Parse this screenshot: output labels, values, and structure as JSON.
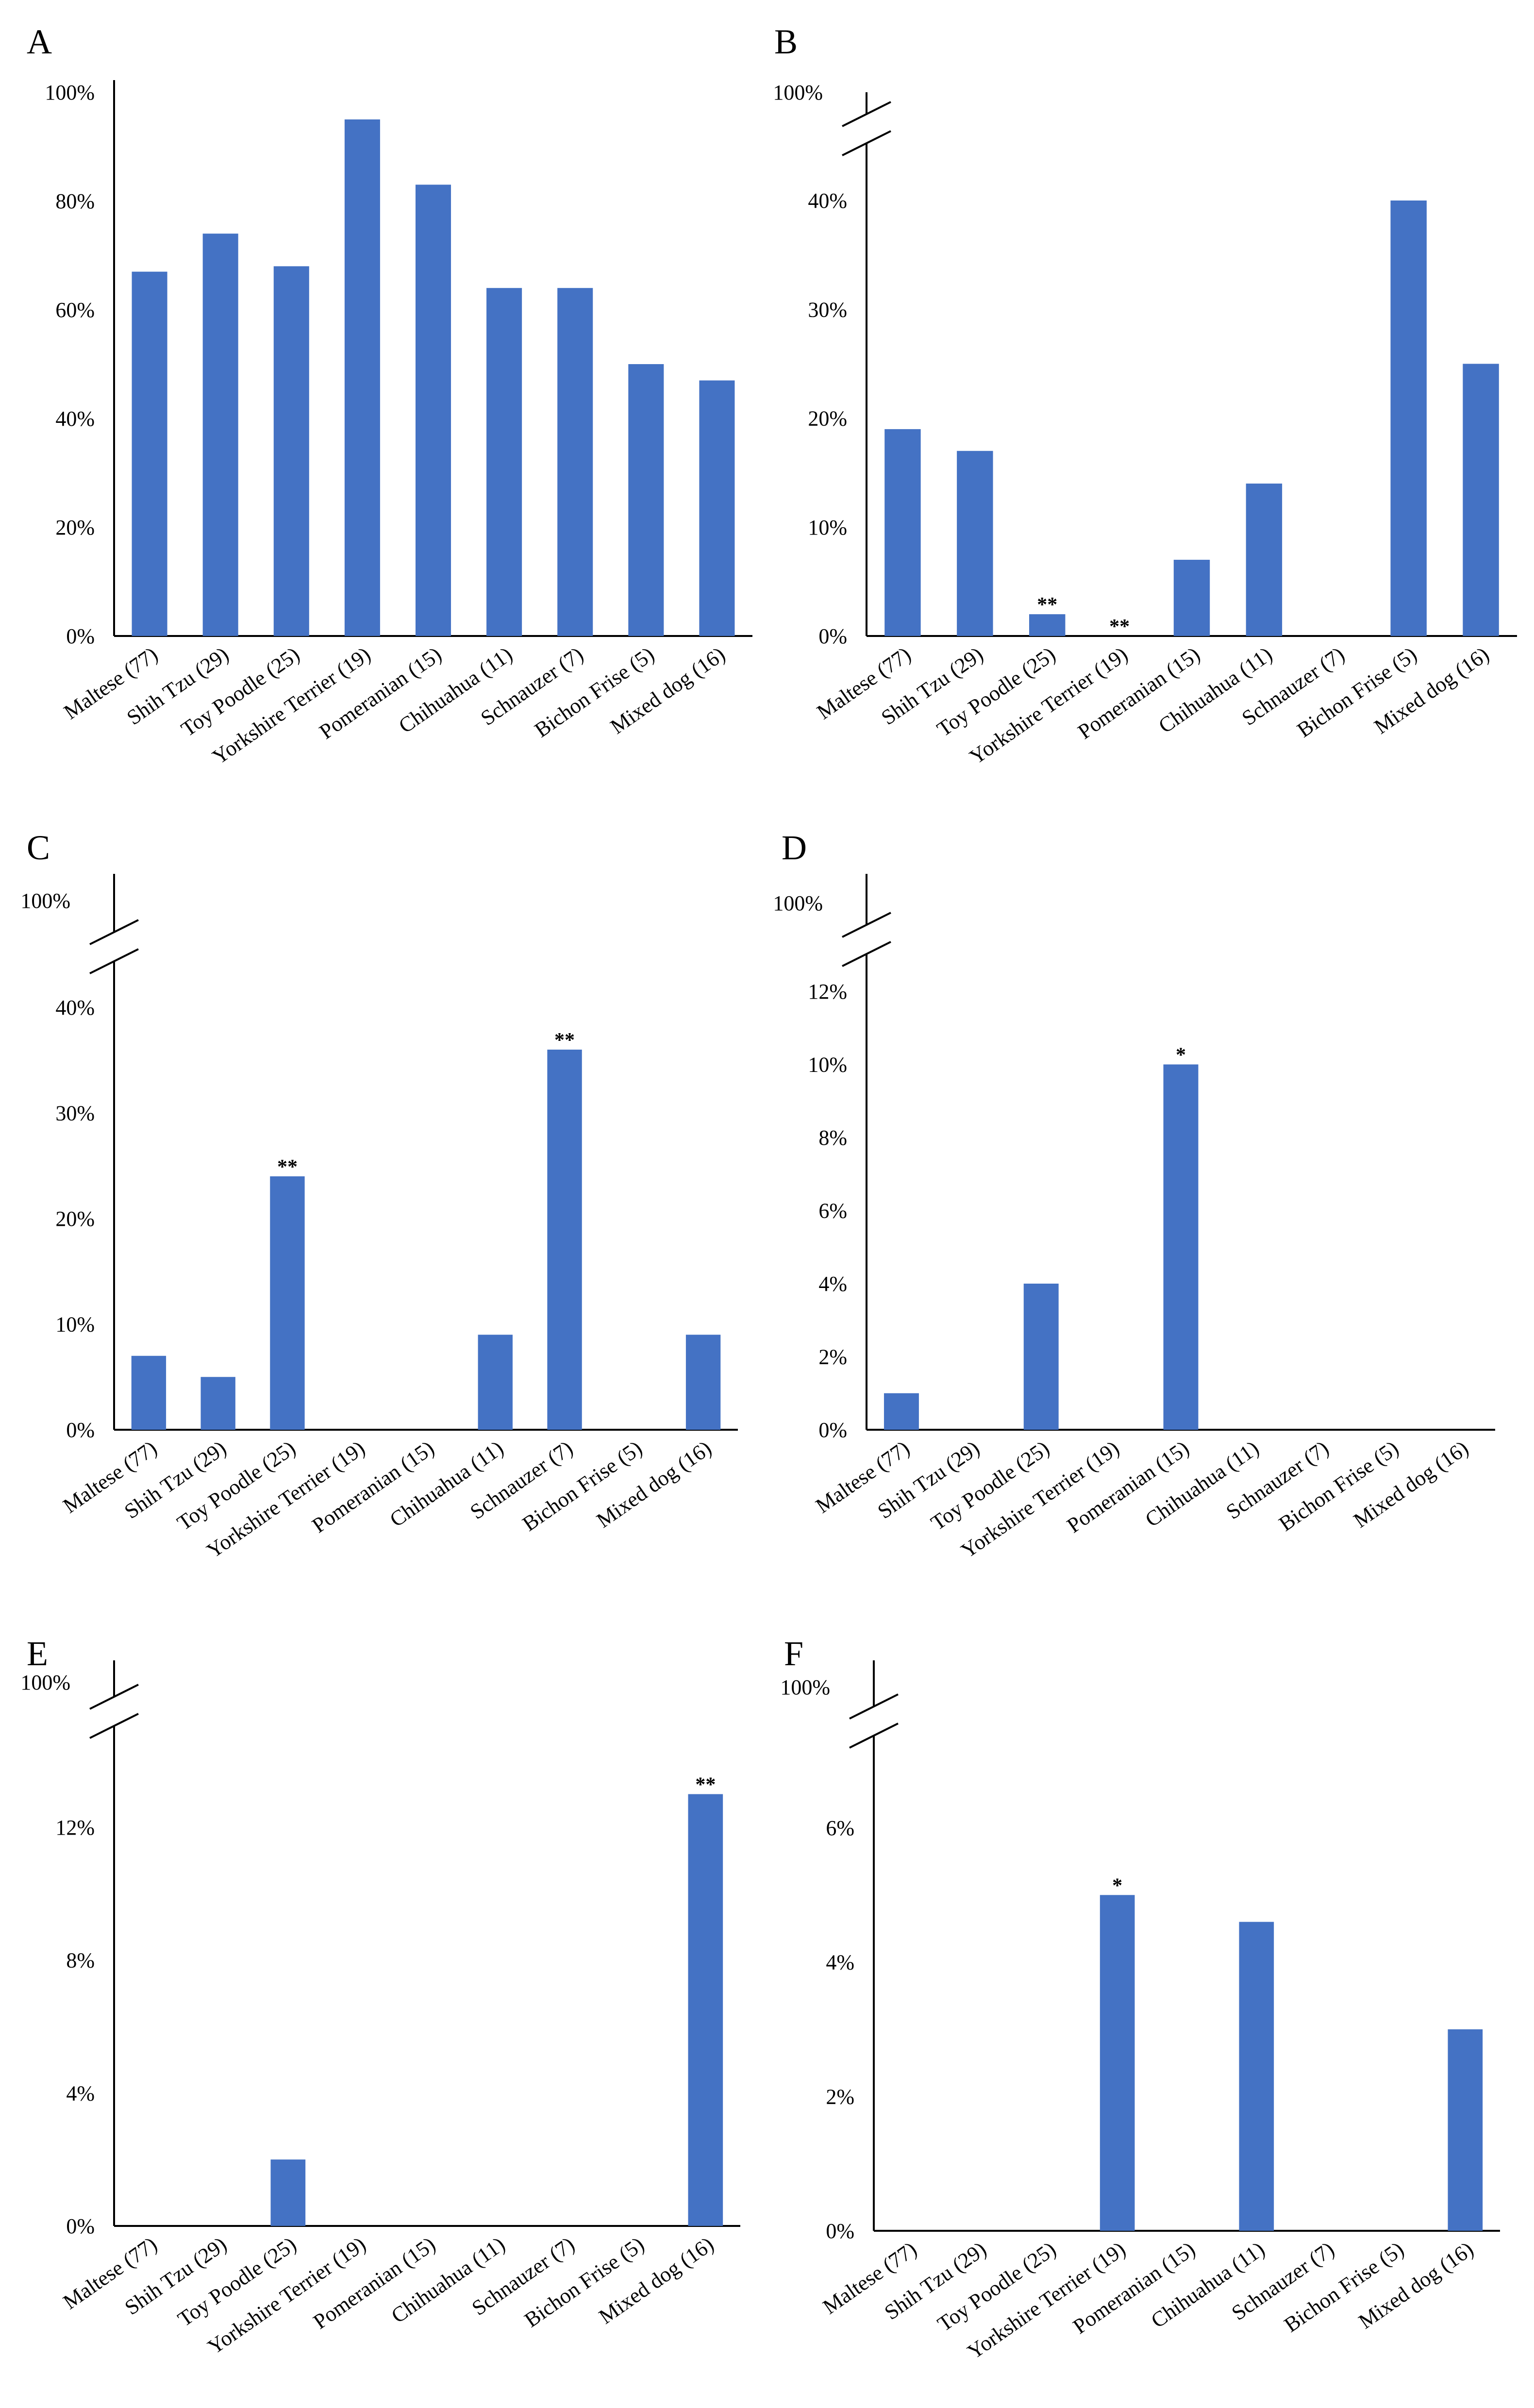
{
  "bar_color": "#4472C4",
  "chart_data": [
    {
      "type": "bar",
      "panel": "A",
      "categories": [
        "Maltese (77)",
        "Shih Tzu (29)",
        "Toy Poodle (25)",
        "Yorkshire Terrier (19)",
        "Pomeranian (15)",
        "Chihuahua (11)",
        "Schnauzer (7)",
        "Bichon Frise (5)",
        "Mixed dog (16)"
      ],
      "values": [
        67,
        74,
        68,
        95,
        83,
        64,
        64,
        50,
        47
      ],
      "annotations": [
        "",
        "",
        "",
        "",
        "",
        "",
        "",
        "",
        ""
      ],
      "ylim": [
        0,
        100
      ],
      "yticks": [
        0,
        20,
        40,
        60,
        80,
        100
      ],
      "ytick_labels": [
        "0%",
        "20%",
        "40%",
        "60%",
        "80%",
        "100%"
      ],
      "axis_break": false,
      "break_label": ""
    },
    {
      "type": "bar",
      "panel": "B",
      "categories": [
        "Maltese (77)",
        "Shih Tzu (29)",
        "Toy Poodle (25)",
        "Yorkshire Terrier (19)",
        "Pomeranian (15)",
        "Chihuahua (11)",
        "Schnauzer (7)",
        "Bichon Frise (5)",
        "Mixed dog (16)"
      ],
      "values": [
        19,
        17,
        2,
        0,
        7,
        14,
        0,
        40,
        25
      ],
      "annotations": [
        "",
        "",
        "**",
        "**",
        "",
        "",
        "",
        "",
        ""
      ],
      "ylim": [
        0,
        40
      ],
      "yticks": [
        0,
        10,
        20,
        30,
        40
      ],
      "ytick_labels": [
        "0%",
        "10%",
        "20%",
        "30%",
        "40%"
      ],
      "axis_break": true,
      "break_label": "100%"
    },
    {
      "type": "bar",
      "panel": "C",
      "categories": [
        "Maltese (77)",
        "Shih Tzu (29)",
        "Toy Poodle (25)",
        "Yorkshire Terrier (19)",
        "Pomeranian (15)",
        "Chihuahua (11)",
        "Schnauzer (7)",
        "Bichon Frise (5)",
        "Mixed dog (16)"
      ],
      "values": [
        7,
        5,
        24,
        0,
        0,
        9,
        36,
        0,
        9
      ],
      "annotations": [
        "",
        "",
        "**",
        "",
        "",
        "",
        "**",
        "",
        ""
      ],
      "ylim": [
        0,
        40
      ],
      "yticks": [
        0,
        10,
        20,
        30,
        40
      ],
      "ytick_labels": [
        "0%",
        "10%",
        "20%",
        "30%",
        "40%"
      ],
      "axis_break": true,
      "break_label": "100%"
    },
    {
      "type": "bar",
      "panel": "D",
      "categories": [
        "Maltese (77)",
        "Shih Tzu (29)",
        "Toy Poodle (25)",
        "Yorkshire Terrier (19)",
        "Pomeranian (15)",
        "Chihuahua (11)",
        "Schnauzer (7)",
        "Bichon Frise (5)",
        "Mixed dog (16)"
      ],
      "values": [
        1,
        0,
        4,
        0,
        10,
        0,
        0,
        0,
        0
      ],
      "annotations": [
        "",
        "",
        "",
        "",
        "*",
        "",
        "",
        "",
        ""
      ],
      "ylim": [
        0,
        12
      ],
      "yticks": [
        0,
        2,
        4,
        6,
        8,
        10,
        12
      ],
      "ytick_labels": [
        "0%",
        "2%",
        "4%",
        "6%",
        "8%",
        "10%",
        "12%"
      ],
      "axis_break": true,
      "break_label": "100%"
    },
    {
      "type": "bar",
      "panel": "E",
      "categories": [
        "Maltese (77)",
        "Shih Tzu (29)",
        "Toy Poodle (25)",
        "Yorkshire Terrier (19)",
        "Pomeranian (15)",
        "Chihuahua (11)",
        "Schnauzer (7)",
        "Bichon Frise (5)",
        "Mixed dog (16)"
      ],
      "values": [
        0,
        0,
        2,
        0,
        0,
        0,
        0,
        0,
        13
      ],
      "annotations": [
        "",
        "",
        "",
        "",
        "",
        "",
        "",
        "",
        "**"
      ],
      "ylim": [
        0,
        13.3
      ],
      "yticks": [
        0,
        4,
        8,
        12
      ],
      "ytick_labels": [
        "0%",
        "4%",
        "8%",
        "12%"
      ],
      "axis_break": true,
      "break_label": "100%"
    },
    {
      "type": "bar",
      "panel": "F",
      "categories": [
        "Maltese (77)",
        "Shih Tzu (29)",
        "Toy Poodle (25)",
        "Yorkshire Terrier (19)",
        "Pomeranian (15)",
        "Chihuahua (11)",
        "Schnauzer (7)",
        "Bichon Frise (5)",
        "Mixed dog (16)"
      ],
      "values": [
        0,
        0,
        0,
        5,
        0,
        4.6,
        0,
        0,
        3
      ],
      "annotations": [
        "",
        "",
        "",
        "*",
        "",
        "",
        "",
        "",
        ""
      ],
      "ylim": [
        0,
        6
      ],
      "yticks": [
        0,
        2,
        4,
        6
      ],
      "ytick_labels": [
        "0%",
        "2%",
        "4%",
        "6%"
      ],
      "axis_break": true,
      "break_label": "100%"
    }
  ]
}
